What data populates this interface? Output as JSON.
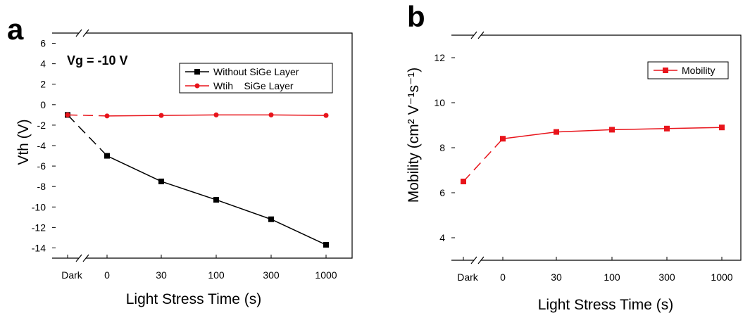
{
  "chart_data": [
    {
      "panel": "a",
      "type": "line",
      "annotation": "Vg = -10 V",
      "xlabel": "Light Stress Time (s)",
      "ylabel": "Vth (V)",
      "categories": [
        "Dark",
        "0",
        "30",
        "100",
        "300",
        "1000"
      ],
      "yticks": [
        6,
        4,
        2,
        0,
        -2,
        -4,
        -6,
        -8,
        -10,
        -12,
        -14
      ],
      "ylim": [
        -15,
        7
      ],
      "grid": false,
      "legend_position": "top-right",
      "series": [
        {
          "name": "Without SiGe Layer",
          "color": "#000000",
          "marker": "square",
          "values": [
            -1.0,
            -5.0,
            -7.5,
            -9.3,
            -11.2,
            -13.7
          ]
        },
        {
          "name": "Wtih    SiGe Layer",
          "color": "#e8141b",
          "marker": "circle",
          "values": [
            -1.0,
            -1.1,
            -1.05,
            -1.0,
            -1.0,
            -1.05
          ]
        }
      ]
    },
    {
      "panel": "b",
      "type": "line",
      "xlabel": "Light Stress Time (s)",
      "ylabel": "Mobility (cm² V⁻¹s⁻¹)",
      "categories": [
        "Dark",
        "0",
        "30",
        "100",
        "300",
        "1000"
      ],
      "yticks": [
        4,
        6,
        8,
        10,
        12
      ],
      "ylim": [
        3,
        13
      ],
      "grid": false,
      "legend_position": "top-right",
      "series": [
        {
          "name": "Mobility",
          "color": "#e8141b",
          "marker": "square",
          "values": [
            6.5,
            8.4,
            8.7,
            8.8,
            8.85,
            8.9
          ]
        }
      ]
    }
  ]
}
